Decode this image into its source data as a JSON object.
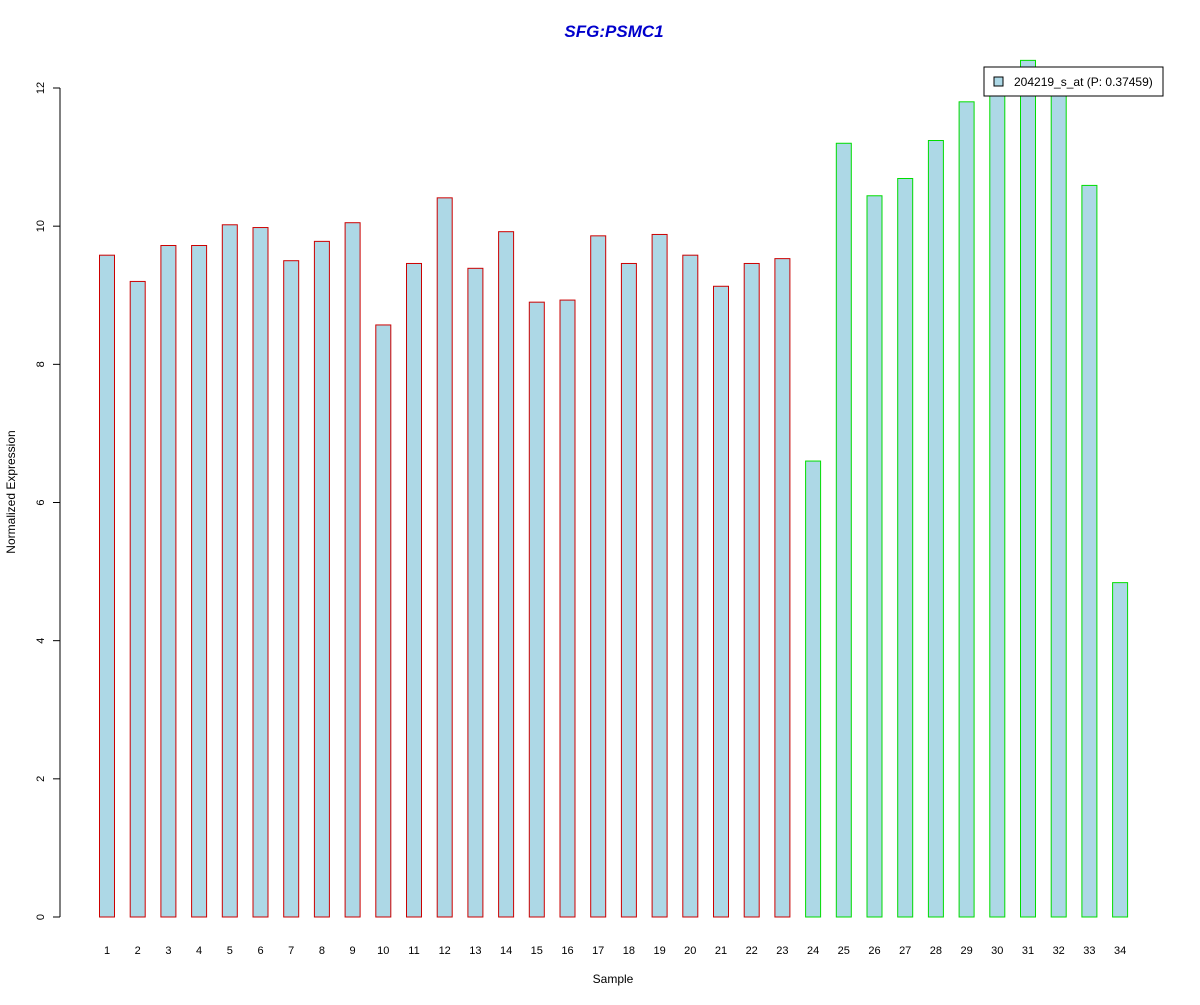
{
  "chart_data": {
    "type": "bar",
    "title": "SFG:PSMC1",
    "xlabel": "Sample",
    "ylabel": "Normalized Expression",
    "ylim": [
      0,
      12
    ],
    "yticks": [
      "0",
      "2",
      "4",
      "6",
      "8",
      "10",
      "12"
    ],
    "grid": false,
    "legend_position": "top-right",
    "categories": [
      "1",
      "2",
      "3",
      "4",
      "5",
      "6",
      "7",
      "8",
      "9",
      "10",
      "11",
      "12",
      "13",
      "14",
      "15",
      "16",
      "17",
      "18",
      "19",
      "20",
      "21",
      "22",
      "23",
      "24",
      "25",
      "26",
      "27",
      "28",
      "29",
      "30",
      "31",
      "32",
      "33",
      "34"
    ],
    "series": [
      {
        "name": "204219_s_at (P: 0.37459)",
        "values": [
          9.58,
          9.2,
          9.72,
          9.72,
          10.02,
          9.98,
          9.5,
          9.78,
          10.05,
          8.57,
          9.46,
          10.41,
          9.39,
          9.92,
          8.9,
          8.93,
          9.86,
          9.46,
          9.88,
          9.58,
          9.13,
          9.46,
          9.53,
          6.6,
          11.2,
          10.44,
          10.69,
          11.24,
          11.8,
          11.94,
          12.4,
          11.94,
          10.59,
          4.84
        ],
        "fill_color": "#add8e6"
      }
    ],
    "groups": [
      {
        "first_sample": 1,
        "last_sample": 23,
        "border_color": "#cc0000"
      },
      {
        "first_sample": 24,
        "last_sample": 34,
        "border_color": "#00dd00"
      }
    ],
    "colors": {
      "title": "#0000cc",
      "bar_fill": "#add8e6",
      "axis": "#000000"
    }
  }
}
